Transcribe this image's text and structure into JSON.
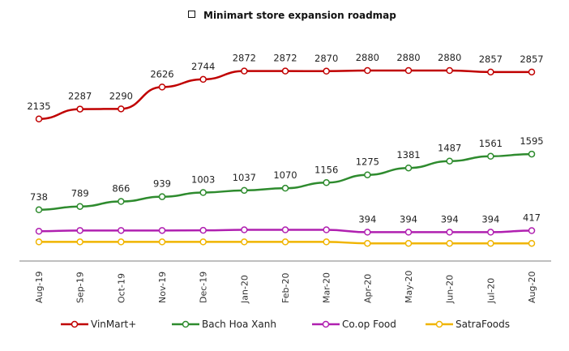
{
  "chart_data": {
    "type": "line",
    "title": "Minimart store expansion roadmap",
    "categories": [
      "Aug-19",
      "Sep-19",
      "Oct-19",
      "Nov-19",
      "Dec-19",
      "Jan-20",
      "Feb-20",
      "Mar-20",
      "Apr-20",
      "May-20",
      "Jun-20",
      "Jul-20",
      "Aug-20"
    ],
    "xlabel": "",
    "ylabel": "",
    "ylim": [
      0,
      3000
    ],
    "grid": false,
    "legend": "bottom",
    "series": [
      {
        "name": "VinMart+",
        "color": "#c00000",
        "values": [
          2135,
          2287,
          2290,
          2626,
          2744,
          2872,
          2872,
          2870,
          2880,
          2880,
          2880,
          2857,
          2857
        ],
        "labels": [
          true,
          true,
          true,
          true,
          true,
          true,
          true,
          true,
          true,
          true,
          true,
          true,
          true
        ]
      },
      {
        "name": "Bach Hoa Xanh",
        "color": "#2e8b2e",
        "values": [
          738,
          789,
          866,
          939,
          1003,
          1037,
          1070,
          1156,
          1275,
          1381,
          1487,
          1561,
          1595
        ],
        "labels": [
          true,
          true,
          true,
          true,
          true,
          true,
          true,
          true,
          true,
          true,
          true,
          true,
          true
        ]
      },
      {
        "name": "Co.op Food",
        "color": "#b020b0",
        "values": [
          408,
          420,
          420,
          420,
          422,
          430,
          430,
          430,
          394,
          394,
          394,
          394,
          417
        ],
        "labels": [
          false,
          false,
          false,
          false,
          false,
          false,
          false,
          false,
          true,
          true,
          true,
          true,
          true
        ]
      },
      {
        "name": "SatraFoods",
        "color": "#f0b400",
        "values": [
          244,
          244,
          244,
          244,
          244,
          244,
          244,
          244,
          222,
          222,
          222,
          222,
          222
        ],
        "labels": [
          false,
          false,
          false,
          false,
          false,
          false,
          false,
          false,
          false,
          false,
          false,
          false,
          false
        ]
      }
    ]
  }
}
